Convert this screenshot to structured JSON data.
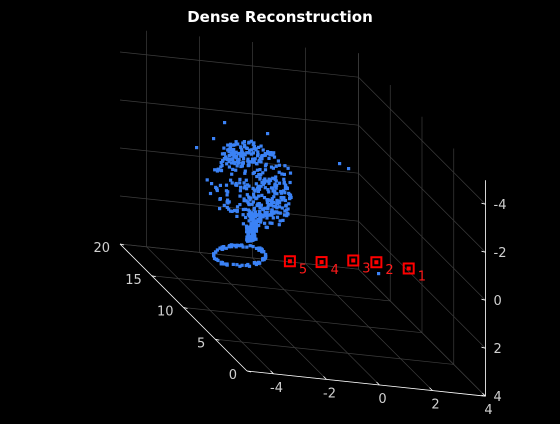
{
  "window": {
    "title": "Dense Reconstruction"
  },
  "chart_data": {
    "type": "scatter",
    "title": "Dense Reconstruction",
    "xlabel": "",
    "ylabel": "",
    "zlabel": "",
    "xlim": [
      -5,
      4
    ],
    "ylim": [
      0,
      20
    ],
    "zlim": [
      -5,
      4
    ],
    "x_ticks": [
      -4,
      -2,
      0,
      2,
      4
    ],
    "y_ticks": [
      0,
      5,
      10,
      15,
      20
    ],
    "z_ticks": [
      -4,
      -2,
      0,
      2,
      4
    ],
    "x_tick_labels": [
      "-4",
      "-2",
      "0",
      "2",
      "4"
    ],
    "y_tick_labels": [
      "0",
      "5",
      "10",
      "15",
      "20"
    ],
    "z_tick_labels": [
      "-4",
      "-2",
      "0",
      "2",
      "4"
    ],
    "grid": true,
    "background": "#000000",
    "point_color": "#3b82f6",
    "camera_color": "#ff0000",
    "cameras": [
      {
        "label": "1",
        "x": 2.3,
        "y": 5.0,
        "z": 0.2
      },
      {
        "label": "2",
        "x": 1.2,
        "y": 5.5,
        "z": 0.2
      },
      {
        "label": "3",
        "x": 0.4,
        "y": 5.8,
        "z": 0.3
      },
      {
        "label": "4",
        "x": -0.7,
        "y": 6.2,
        "z": 0.6
      },
      {
        "label": "5",
        "x": -1.8,
        "y": 6.6,
        "z": 0.8
      }
    ]
  }
}
